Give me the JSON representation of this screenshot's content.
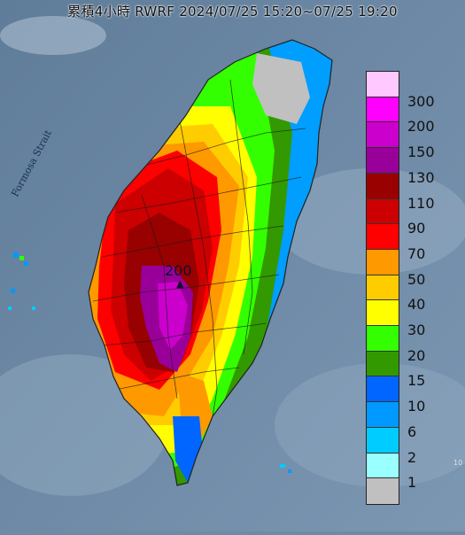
{
  "title": "累積4小時 RWRF 2024/07/25 15:20~07/25 19:20",
  "strait_label": "Formosa Strait",
  "peak": {
    "label": "200",
    "marker": "▲"
  },
  "edge_tick": "10",
  "legend": {
    "items": [
      {
        "label": "300",
        "color": "#ffc8ff"
      },
      {
        "label": "200",
        "color": "#ff00ff"
      },
      {
        "label": "150",
        "color": "#cc00cc"
      },
      {
        "label": "130",
        "color": "#990099"
      },
      {
        "label": "110",
        "color": "#990000"
      },
      {
        "label": "90",
        "color": "#cc0000"
      },
      {
        "label": "70",
        "color": "#ff0000"
      },
      {
        "label": "50",
        "color": "#ff9900"
      },
      {
        "label": "40",
        "color": "#ffcc00"
      },
      {
        "label": "30",
        "color": "#ffff00"
      },
      {
        "label": "20",
        "color": "#33ff00"
      },
      {
        "label": "15",
        "color": "#339900"
      },
      {
        "label": "10",
        "color": "#0066ff"
      },
      {
        "label": "6",
        "color": "#0099ff"
      },
      {
        "label": "2",
        "color": "#00ccff"
      },
      {
        "label": "1",
        "color": "#99ffff"
      },
      {
        "label": "",
        "color": "#c0c0c0"
      }
    ]
  }
}
